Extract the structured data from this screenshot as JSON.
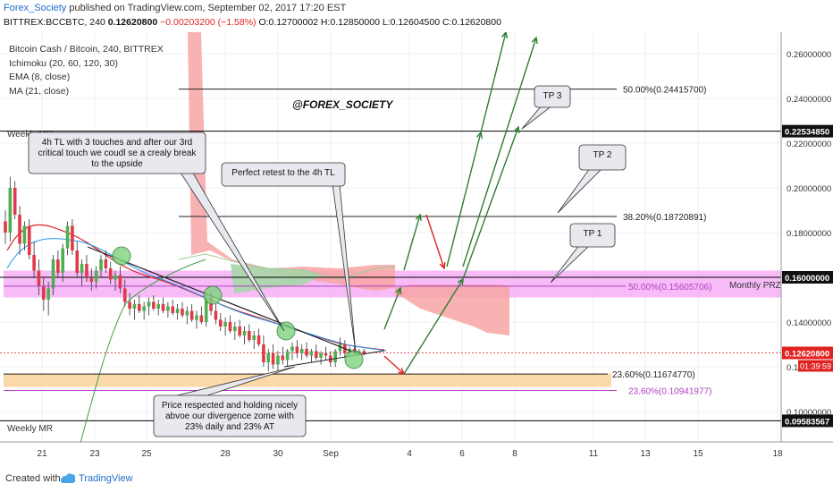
{
  "header": {
    "author": "Forex_Society",
    "published": "published on TradingView.com, September 02, 2017 17:20 EST",
    "symbol": "BITTREX:BCCBTC, 240",
    "price": "0.12620800",
    "change": "−0.00203200 (−1.58%)",
    "ohlc": "O:0.12700002 H:0.12850000 L:0.12604500 C:0.12620800"
  },
  "legend": {
    "title": "Bitcoin Cash / Bitcoin, 240, BITTREX",
    "ichimoku": "Ichimoku (20, 60, 120, 30)",
    "ema": "EMA (8, close)",
    "ma": "MA (21, close)"
  },
  "watermark": "@FOREX_SOCIETY",
  "footer": {
    "created_with": "Created with",
    "brand": "TradingView"
  },
  "colors": {
    "resistance_zone": "#f4a6f4",
    "support_zone": "#fbd59e",
    "up_candle": "#4caf50",
    "down_candle": "#e0394a",
    "cloud_red": "#f8a5a5",
    "cloud_green": "#a5d6a7",
    "price_label": "#e02222",
    "horizontal_line": "#000000",
    "arrow_green": "#2e7d32",
    "arrow_red": "#e02222"
  },
  "chart_data": {
    "type": "candlestick",
    "symbol": "BITTREX:BCCBTC",
    "timeframe": "240",
    "x_ticks": [
      "21",
      "23",
      "25",
      "28",
      "30",
      "Sep",
      "4",
      "6",
      "8",
      "11",
      "13",
      "15",
      "18"
    ],
    "y_ticks": [
      "0.26000000",
      "0.24000000",
      "0.22000000",
      "0.20000000",
      "0.18000000",
      "0.16000000",
      "0.14000000",
      "0.12000000",
      "0.10000000"
    ],
    "ylim": [
      0.093,
      0.271
    ],
    "price_labels": {
      "current": "0.12620800",
      "countdown": "01:39:59",
      "line_1": "0.22534850",
      "line_2": "0.16000000",
      "line_3": "0.09583567"
    },
    "levels": [
      {
        "label": "50.00%(0.24415700)",
        "value": 0.244157
      },
      {
        "label": "38.20%(0.18720891)",
        "value": 0.18720891
      },
      {
        "label": "50.00%(0.15605706)",
        "value": 0.15605706
      },
      {
        "label": "23.60%(0.11674770)",
        "value": 0.1167477
      },
      {
        "label": "23.60%(0.10941977)",
        "value": 0.10941977
      }
    ],
    "horizontal_lines": [
      0.2253485,
      0.16,
      0.09583567
    ],
    "zone_labels": {
      "monthly_prz": "Monthly PRZ",
      "weekly_mr_top": "Weekly MR",
      "weekly_mr_bottom": "Weekly MR"
    },
    "annotations": {
      "trendline_note": [
        "4h TL with 3 touches and after our 3rd",
        "critical touch we coudl se a crealy break",
        "to the upside"
      ],
      "retest_note": "Perfect retest to the 4h TL",
      "support_note": [
        "Price respected and holding nicely",
        "abvoe our divergence zome with",
        "23% daily and 23% AT"
      ],
      "tp1": "TP 1",
      "tp2": "TP 2",
      "tp3": "TP 3"
    },
    "candles": [
      [
        0.185,
        0.19,
        0.175,
        0.18
      ],
      [
        0.18,
        0.205,
        0.176,
        0.2
      ],
      [
        0.2,
        0.203,
        0.186,
        0.188
      ],
      [
        0.188,
        0.192,
        0.17,
        0.175
      ],
      [
        0.175,
        0.185,
        0.172,
        0.183
      ],
      [
        0.183,
        0.186,
        0.168,
        0.17
      ],
      [
        0.17,
        0.176,
        0.16,
        0.163
      ],
      [
        0.163,
        0.168,
        0.152,
        0.156
      ],
      [
        0.156,
        0.16,
        0.145,
        0.15
      ],
      [
        0.15,
        0.158,
        0.143,
        0.155
      ],
      [
        0.155,
        0.17,
        0.152,
        0.168
      ],
      [
        0.168,
        0.172,
        0.16,
        0.162
      ],
      [
        0.162,
        0.175,
        0.158,
        0.173
      ],
      [
        0.173,
        0.185,
        0.17,
        0.183
      ],
      [
        0.183,
        0.186,
        0.17,
        0.172
      ],
      [
        0.172,
        0.176,
        0.16,
        0.162
      ],
      [
        0.162,
        0.168,
        0.156,
        0.166
      ],
      [
        0.166,
        0.17,
        0.158,
        0.16
      ],
      [
        0.16,
        0.164,
        0.154,
        0.158
      ],
      [
        0.158,
        0.165,
        0.155,
        0.163
      ],
      [
        0.163,
        0.17,
        0.16,
        0.168
      ],
      [
        0.168,
        0.172,
        0.162,
        0.164
      ],
      [
        0.164,
        0.167,
        0.157,
        0.159
      ],
      [
        0.159,
        0.163,
        0.154,
        0.161
      ],
      [
        0.161,
        0.165,
        0.153,
        0.155
      ],
      [
        0.155,
        0.159,
        0.147,
        0.149
      ],
      [
        0.149,
        0.153,
        0.143,
        0.146
      ],
      [
        0.146,
        0.15,
        0.141,
        0.148
      ],
      [
        0.148,
        0.152,
        0.144,
        0.145
      ],
      [
        0.145,
        0.149,
        0.141,
        0.147
      ],
      [
        0.147,
        0.151,
        0.143,
        0.149
      ],
      [
        0.149,
        0.152,
        0.145,
        0.146
      ],
      [
        0.146,
        0.15,
        0.143,
        0.148
      ],
      [
        0.148,
        0.151,
        0.144,
        0.145
      ],
      [
        0.145,
        0.149,
        0.142,
        0.147
      ],
      [
        0.147,
        0.15,
        0.143,
        0.144
      ],
      [
        0.144,
        0.148,
        0.141,
        0.146
      ],
      [
        0.146,
        0.149,
        0.142,
        0.143
      ],
      [
        0.143,
        0.147,
        0.139,
        0.145
      ],
      [
        0.145,
        0.148,
        0.14,
        0.141
      ],
      [
        0.141,
        0.145,
        0.137,
        0.143
      ],
      [
        0.143,
        0.147,
        0.139,
        0.14
      ],
      [
        0.14,
        0.153,
        0.138,
        0.151
      ],
      [
        0.151,
        0.154,
        0.143,
        0.145
      ],
      [
        0.145,
        0.148,
        0.139,
        0.141
      ],
      [
        0.141,
        0.144,
        0.136,
        0.138
      ],
      [
        0.138,
        0.142,
        0.134,
        0.14
      ],
      [
        0.14,
        0.143,
        0.135,
        0.136
      ],
      [
        0.136,
        0.14,
        0.132,
        0.138
      ],
      [
        0.138,
        0.141,
        0.133,
        0.134
      ],
      [
        0.134,
        0.138,
        0.13,
        0.136
      ],
      [
        0.136,
        0.139,
        0.131,
        0.132
      ],
      [
        0.132,
        0.136,
        0.128,
        0.134
      ],
      [
        0.134,
        0.137,
        0.129,
        0.13
      ],
      [
        0.13,
        0.134,
        0.12,
        0.122
      ],
      [
        0.122,
        0.128,
        0.118,
        0.126
      ],
      [
        0.126,
        0.13,
        0.119,
        0.121
      ],
      [
        0.121,
        0.127,
        0.118,
        0.125
      ],
      [
        0.125,
        0.129,
        0.121,
        0.123
      ],
      [
        0.123,
        0.128,
        0.12,
        0.127
      ],
      [
        0.127,
        0.131,
        0.123,
        0.129
      ],
      [
        0.129,
        0.132,
        0.124,
        0.126
      ],
      [
        0.126,
        0.13,
        0.123,
        0.128
      ],
      [
        0.128,
        0.131,
        0.124,
        0.125
      ],
      [
        0.125,
        0.128,
        0.122,
        0.127
      ],
      [
        0.127,
        0.13,
        0.123,
        0.124
      ],
      [
        0.124,
        0.127,
        0.121,
        0.126
      ],
      [
        0.126,
        0.129,
        0.123,
        0.125
      ],
      [
        0.125,
        0.127,
        0.12,
        0.122
      ],
      [
        0.122,
        0.128,
        0.12,
        0.127
      ],
      [
        0.127,
        0.133,
        0.125,
        0.13
      ],
      [
        0.13,
        0.132,
        0.124,
        0.126
      ],
      [
        0.126,
        0.129,
        0.124,
        0.128
      ],
      [
        0.128,
        0.129,
        0.125,
        0.126
      ],
      [
        0.126,
        0.128,
        0.125,
        0.127
      ],
      [
        0.127,
        0.128,
        0.125,
        0.126
      ]
    ]
  }
}
